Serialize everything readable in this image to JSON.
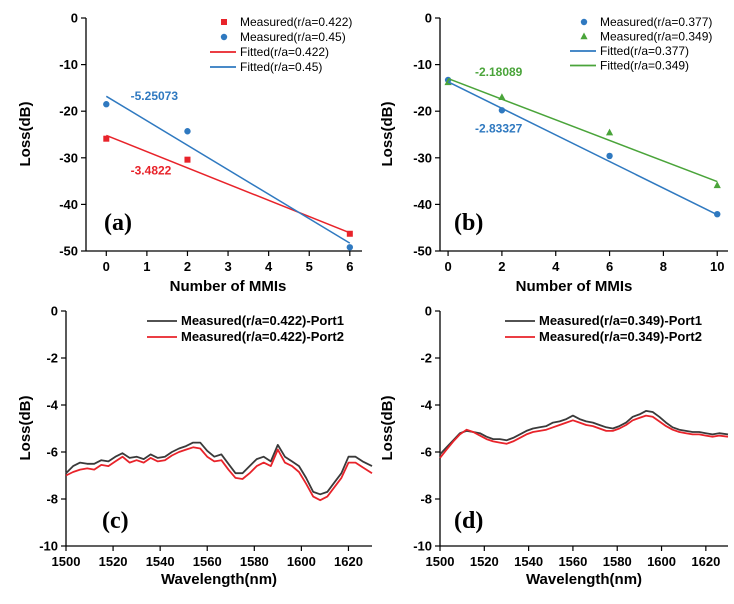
{
  "chart_data": [
    {
      "type": "scatter",
      "panel": "(a)",
      "xlabel": "",
      "ylabel": "Loss(dB)",
      "xlim": [
        -0.5,
        6.3
      ],
      "ylim": [
        -50,
        0
      ],
      "xticks": [
        0,
        1,
        2,
        3,
        4,
        5,
        6
      ],
      "yticks": [
        0,
        -10,
        -20,
        -30,
        -40,
        -50
      ],
      "legend": "top-right",
      "series": [
        {
          "name": "Measured(r/a=0.422)",
          "kind": "points",
          "marker": "square",
          "color": "#e8232a",
          "x": [
            0,
            2,
            6
          ],
          "y": [
            -25.9,
            -30.4,
            -46.3
          ]
        },
        {
          "name": "Measured(r/a=0.45)",
          "kind": "points",
          "marker": "circle",
          "color": "#2f79c0",
          "x": [
            0,
            2,
            6
          ],
          "y": [
            -18.5,
            -24.3,
            -49.2
          ]
        },
        {
          "name": "Fitted(r/a=0.422)",
          "kind": "line",
          "color": "#e8232a",
          "x": [
            0,
            6
          ],
          "y": [
            -25.2,
            -46.1
          ]
        },
        {
          "name": "Fitted(r/a=0.45)",
          "kind": "line",
          "color": "#2f79c0",
          "x": [
            0,
            6
          ],
          "y": [
            -16.8,
            -48.3
          ]
        }
      ],
      "annotations": [
        {
          "text": "-5.25073",
          "color": "#2f79c0",
          "x": 0.6,
          "y": -17.6
        },
        {
          "text": "-3.4822",
          "color": "#e8232a",
          "x": 0.6,
          "y": -33.6
        }
      ]
    },
    {
      "type": "scatter",
      "panel": "(b)",
      "xlabel": "",
      "ylabel": "Loss(dB)",
      "xlim": [
        -0.3,
        10.4
      ],
      "ylim": [
        -50,
        0
      ],
      "xticks": [
        0,
        2,
        4,
        6,
        8,
        10
      ],
      "yticks": [
        0,
        -10,
        -20,
        -30,
        -40,
        -50
      ],
      "legend": "top-right",
      "series": [
        {
          "name": "Measured(r/a=0.377)",
          "kind": "points",
          "marker": "circle",
          "color": "#2f79c0",
          "x": [
            0,
            2,
            6,
            10
          ],
          "y": [
            -13.3,
            -19.8,
            -29.6,
            -42.1
          ]
        },
        {
          "name": "Measured(r/a=0.349)",
          "kind": "points",
          "marker": "triangle",
          "color": "#4aa43a",
          "x": [
            0,
            2,
            6,
            10
          ],
          "y": [
            -13.8,
            -17.0,
            -24.6,
            -35.9
          ]
        },
        {
          "name": "Fitted(r/a=0.377)",
          "kind": "line",
          "color": "#2f79c0",
          "x": [
            0,
            10
          ],
          "y": [
            -13.7,
            -42.2
          ]
        },
        {
          "name": "Fitted(r/a=0.349)",
          "kind": "line",
          "color": "#4aa43a",
          "x": [
            0,
            10
          ],
          "y": [
            -13.0,
            -35.1
          ]
        }
      ],
      "annotations": [
        {
          "text": "-2.18089",
          "color": "#4aa43a",
          "x": 1.0,
          "y": -12.4
        },
        {
          "text": "-2.83327",
          "color": "#2f79c0",
          "x": 1.0,
          "y": -24.6
        }
      ]
    },
    {
      "type": "line",
      "panel": "(c)",
      "xlabel": "Wavelength(nm)",
      "ylabel": "Loss(dB)",
      "xlim": [
        1500,
        1630
      ],
      "ylim": [
        -10,
        0
      ],
      "xticks": [
        1500,
        1520,
        1540,
        1560,
        1580,
        1600,
        1620
      ],
      "yticks": [
        0,
        -2,
        -4,
        -6,
        -8,
        -10
      ],
      "legend": "top-right",
      "series": [
        {
          "name": "Measured(r/a=0.422)-Port1",
          "color": "#3a3a3a",
          "x": [
            1500,
            1503,
            1506,
            1509,
            1512,
            1515,
            1518,
            1521,
            1524,
            1527,
            1530,
            1533,
            1536,
            1539,
            1542,
            1545,
            1548,
            1551,
            1554,
            1557,
            1560,
            1563,
            1566,
            1569,
            1572,
            1575,
            1578,
            1581,
            1584,
            1587,
            1590,
            1593,
            1596,
            1599,
            1602,
            1605,
            1608,
            1611,
            1614,
            1617,
            1620,
            1623,
            1626,
            1630
          ],
          "y": [
            -6.9,
            -6.6,
            -6.45,
            -6.5,
            -6.5,
            -6.35,
            -6.4,
            -6.2,
            -6.05,
            -6.25,
            -6.2,
            -6.3,
            -6.1,
            -6.25,
            -6.2,
            -6.0,
            -5.85,
            -5.75,
            -5.6,
            -5.6,
            -5.95,
            -6.2,
            -6.1,
            -6.5,
            -6.9,
            -6.9,
            -6.6,
            -6.3,
            -6.2,
            -6.4,
            -5.7,
            -6.2,
            -6.4,
            -6.6,
            -7.1,
            -7.7,
            -7.8,
            -7.7,
            -7.3,
            -6.9,
            -6.2,
            -6.2,
            -6.4,
            -6.6
          ]
        },
        {
          "name": "Measured(r/a=0.422)-Port2",
          "color": "#e8232a",
          "x": [
            1500,
            1503,
            1506,
            1509,
            1512,
            1515,
            1518,
            1521,
            1524,
            1527,
            1530,
            1533,
            1536,
            1539,
            1542,
            1545,
            1548,
            1551,
            1554,
            1557,
            1560,
            1563,
            1566,
            1569,
            1572,
            1575,
            1578,
            1581,
            1584,
            1587,
            1590,
            1593,
            1596,
            1599,
            1602,
            1605,
            1608,
            1611,
            1614,
            1617,
            1620,
            1623,
            1626,
            1630
          ],
          "y": [
            -7.0,
            -6.85,
            -6.75,
            -6.7,
            -6.75,
            -6.55,
            -6.6,
            -6.4,
            -6.2,
            -6.45,
            -6.35,
            -6.45,
            -6.25,
            -6.4,
            -6.35,
            -6.15,
            -6.0,
            -5.9,
            -5.8,
            -5.85,
            -6.2,
            -6.4,
            -6.35,
            -6.75,
            -7.1,
            -7.15,
            -6.9,
            -6.6,
            -6.45,
            -6.6,
            -5.9,
            -6.45,
            -6.6,
            -6.85,
            -7.35,
            -7.9,
            -8.05,
            -7.9,
            -7.5,
            -7.1,
            -6.45,
            -6.45,
            -6.65,
            -6.9
          ]
        }
      ]
    },
    {
      "type": "line",
      "panel": "(d)",
      "xlabel": "Wavelength(nm)",
      "ylabel": "Loss(dB)",
      "xlim": [
        1500,
        1630
      ],
      "ylim": [
        -10,
        0
      ],
      "xticks": [
        1500,
        1520,
        1540,
        1560,
        1580,
        1600,
        1620
      ],
      "yticks": [
        0,
        -2,
        -4,
        -6,
        -8,
        -10
      ],
      "legend": "top-right",
      "series": [
        {
          "name": "Measured(r/a=0.349)-Port1",
          "color": "#3a3a3a",
          "x": [
            1500,
            1503,
            1506,
            1509,
            1512,
            1515,
            1518,
            1521,
            1524,
            1527,
            1530,
            1533,
            1536,
            1539,
            1542,
            1545,
            1548,
            1551,
            1554,
            1557,
            1560,
            1563,
            1566,
            1569,
            1572,
            1575,
            1578,
            1581,
            1584,
            1587,
            1590,
            1593,
            1596,
            1599,
            1602,
            1605,
            1608,
            1611,
            1614,
            1617,
            1620,
            1623,
            1626,
            1630
          ],
          "y": [
            -6.1,
            -5.8,
            -5.5,
            -5.2,
            -5.1,
            -5.15,
            -5.2,
            -5.35,
            -5.45,
            -5.45,
            -5.5,
            -5.4,
            -5.25,
            -5.1,
            -5.0,
            -4.95,
            -4.9,
            -4.75,
            -4.7,
            -4.6,
            -4.45,
            -4.6,
            -4.7,
            -4.75,
            -4.85,
            -4.95,
            -5.0,
            -4.9,
            -4.75,
            -4.5,
            -4.4,
            -4.25,
            -4.3,
            -4.5,
            -4.75,
            -4.95,
            -5.05,
            -5.1,
            -5.15,
            -5.15,
            -5.2,
            -5.25,
            -5.2,
            -5.25
          ]
        },
        {
          "name": "Measured(r/a=0.349)-Port2",
          "color": "#e8232a",
          "x": [
            1500,
            1503,
            1506,
            1509,
            1512,
            1515,
            1518,
            1521,
            1524,
            1527,
            1530,
            1533,
            1536,
            1539,
            1542,
            1545,
            1548,
            1551,
            1554,
            1557,
            1560,
            1563,
            1566,
            1569,
            1572,
            1575,
            1578,
            1581,
            1584,
            1587,
            1590,
            1593,
            1596,
            1599,
            1602,
            1605,
            1608,
            1611,
            1614,
            1617,
            1620,
            1623,
            1626,
            1630
          ],
          "y": [
            -6.25,
            -5.9,
            -5.55,
            -5.25,
            -5.05,
            -5.15,
            -5.3,
            -5.45,
            -5.55,
            -5.6,
            -5.65,
            -5.55,
            -5.4,
            -5.25,
            -5.15,
            -5.1,
            -5.05,
            -4.95,
            -4.85,
            -4.75,
            -4.65,
            -4.75,
            -4.85,
            -4.9,
            -5.0,
            -5.1,
            -5.1,
            -5.0,
            -4.85,
            -4.65,
            -4.55,
            -4.45,
            -4.5,
            -4.7,
            -4.9,
            -5.05,
            -5.15,
            -5.2,
            -5.25,
            -5.25,
            -5.3,
            -5.35,
            -5.3,
            -5.35
          ]
        }
      ]
    }
  ]
}
